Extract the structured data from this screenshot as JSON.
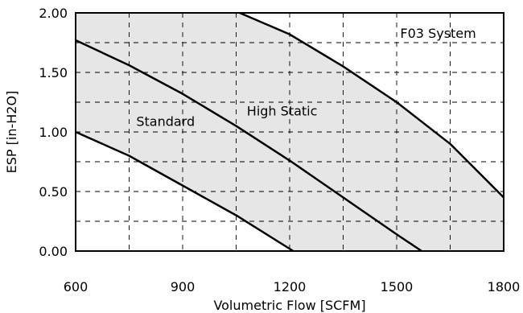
{
  "chart_data": {
    "type": "line",
    "xlabel": "Volumetric Flow [SCFM]",
    "ylabel": "ESP [in-H2O]",
    "xlim": [
      600,
      1800
    ],
    "ylim": [
      0,
      2
    ],
    "xticks": [
      600,
      900,
      1200,
      1500,
      1800
    ],
    "xtick_labels": [
      "600",
      "900",
      "1200",
      "1500",
      "1800"
    ],
    "yticks": [
      0,
      0.5,
      1.0,
      1.5,
      2.0
    ],
    "ytick_labels": [
      "0.00",
      "0.50",
      "1.00",
      "1.50",
      "2.00"
    ],
    "grid": {
      "style": "dashed",
      "x_step": 150,
      "y_step": 0.25
    },
    "fill_color": "#e6e6e6",
    "line_color": "#000000",
    "series": [
      {
        "x": [
          600,
          750,
          900,
          1050,
          1210
        ],
        "y": [
          1.0,
          0.8,
          0.55,
          0.3,
          0.0
        ]
      },
      {
        "x": [
          600,
          750,
          900,
          1050,
          1200,
          1350,
          1500,
          1570
        ],
        "y": [
          1.77,
          1.56,
          1.32,
          1.05,
          0.76,
          0.45,
          0.14,
          0.0
        ]
      },
      {
        "x": [
          1060,
          1200,
          1350,
          1500,
          1650,
          1800
        ],
        "y": [
          2.0,
          1.82,
          1.55,
          1.25,
          0.9,
          0.45
        ]
      }
    ],
    "annotations": [
      {
        "text": "Standard",
        "x": 770,
        "y": 1.05
      },
      {
        "text": "High Static",
        "x": 1080,
        "y": 1.14
      },
      {
        "text": "F03 System",
        "x": 1510,
        "y": 1.79
      }
    ]
  }
}
